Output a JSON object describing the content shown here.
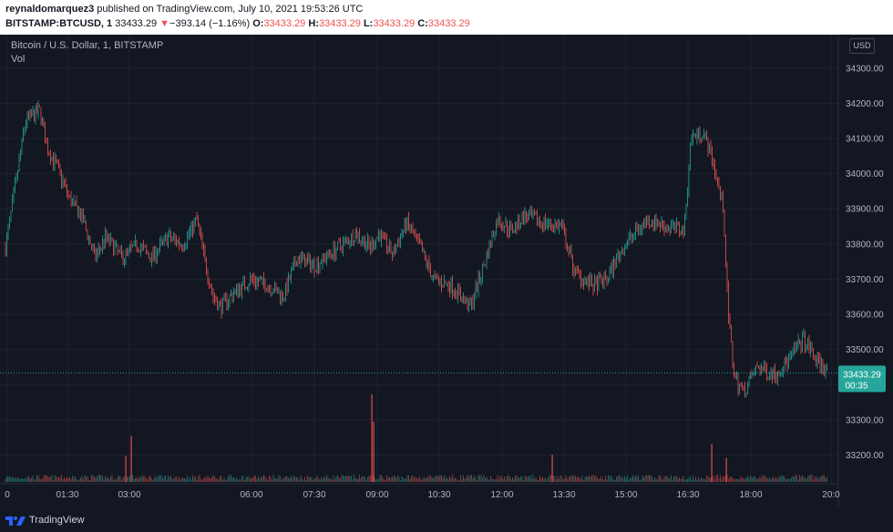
{
  "header": {
    "author": "reynaldomarquez3",
    "published_text": "published on TradingView.com, July 10, 2021 19:53:26 UTC",
    "symbol": "BITSTAMP:BTCUSD, 1",
    "last_price": "33433.29",
    "change_arrow": "▼",
    "change": "−393.14 (−1.16%)",
    "o_label": "O:",
    "o_value": "33433.29",
    "h_label": "H:",
    "h_value": "33433.29",
    "l_label": "L:",
    "l_value": "33433.29",
    "c_label": "C:",
    "c_value": "33433.29"
  },
  "chart": {
    "title": "Bitcoin / U.S. Dollar, 1, BITSTAMP",
    "vol_label": "Vol",
    "currency_button": "USD",
    "price_tag": "33433.29",
    "countdown": "00:35"
  },
  "footer": {
    "brand": "TradingView"
  },
  "colors": {
    "up": "#26a69a",
    "down": "#ef5350",
    "background": "#131722",
    "text": "#d1d4dc",
    "price_tag_bg": "#26a69a"
  },
  "chart_data": {
    "type": "candlestick",
    "y_ticks": [
      "34300.00",
      "34200.00",
      "34100.00",
      "34000.00",
      "33900.00",
      "33800.00",
      "33700.00",
      "33600.00",
      "33500.00",
      "33400.00",
      "33300.00",
      "33200.00"
    ],
    "ylim": [
      33170,
      34310
    ],
    "x_ticks": [
      "0",
      "01:30",
      "03:00",
      "06:00",
      "07:30",
      "09:00",
      "10:30",
      "12:00",
      "13:30",
      "15:00",
      "16:30",
      "18:00",
      "20:0"
    ],
    "last_price_line": 33433.29,
    "price_path": [
      {
        "t": 0,
        "p": 33790
      },
      {
        "t": 10,
        "p": 33950
      },
      {
        "t": 22,
        "p": 34150
      },
      {
        "t": 38,
        "p": 34180
      },
      {
        "t": 45,
        "p": 34080
      },
      {
        "t": 58,
        "p": 34010
      },
      {
        "t": 70,
        "p": 33930
      },
      {
        "t": 85,
        "p": 33870
      },
      {
        "t": 98,
        "p": 33760
      },
      {
        "t": 110,
        "p": 33820
      },
      {
        "t": 128,
        "p": 33760
      },
      {
        "t": 145,
        "p": 33800
      },
      {
        "t": 160,
        "p": 33760
      },
      {
        "t": 178,
        "p": 33820
      },
      {
        "t": 195,
        "p": 33800
      },
      {
        "t": 210,
        "p": 33870
      },
      {
        "t": 218,
        "p": 33760
      },
      {
        "t": 228,
        "p": 33650
      },
      {
        "t": 236,
        "p": 33620
      },
      {
        "t": 250,
        "p": 33660
      },
      {
        "t": 270,
        "p": 33700
      },
      {
        "t": 290,
        "p": 33680
      },
      {
        "t": 305,
        "p": 33650
      },
      {
        "t": 320,
        "p": 33760
      },
      {
        "t": 340,
        "p": 33740
      },
      {
        "t": 360,
        "p": 33780
      },
      {
        "t": 385,
        "p": 33830
      },
      {
        "t": 400,
        "p": 33790
      },
      {
        "t": 410,
        "p": 33830
      },
      {
        "t": 425,
        "p": 33770
      },
      {
        "t": 440,
        "p": 33860
      },
      {
        "t": 455,
        "p": 33790
      },
      {
        "t": 470,
        "p": 33700
      },
      {
        "t": 490,
        "p": 33680
      },
      {
        "t": 510,
        "p": 33620
      },
      {
        "t": 525,
        "p": 33740
      },
      {
        "t": 540,
        "p": 33870
      },
      {
        "t": 555,
        "p": 33840
      },
      {
        "t": 570,
        "p": 33880
      },
      {
        "t": 590,
        "p": 33860
      },
      {
        "t": 610,
        "p": 33850
      },
      {
        "t": 625,
        "p": 33720
      },
      {
        "t": 645,
        "p": 33680
      },
      {
        "t": 660,
        "p": 33700
      },
      {
        "t": 675,
        "p": 33780
      },
      {
        "t": 690,
        "p": 33830
      },
      {
        "t": 705,
        "p": 33870
      },
      {
        "t": 725,
        "p": 33850
      },
      {
        "t": 745,
        "p": 33840
      },
      {
        "t": 752,
        "p": 34100
      },
      {
        "t": 765,
        "p": 34120
      },
      {
        "t": 775,
        "p": 34050
      },
      {
        "t": 788,
        "p": 33900
      },
      {
        "t": 793,
        "p": 33600
      },
      {
        "t": 800,
        "p": 33420
      },
      {
        "t": 810,
        "p": 33380
      },
      {
        "t": 825,
        "p": 33450
      },
      {
        "t": 845,
        "p": 33430
      },
      {
        "t": 860,
        "p": 33470
      },
      {
        "t": 875,
        "p": 33530
      },
      {
        "t": 890,
        "p": 33470
      },
      {
        "t": 905,
        "p": 33433
      }
    ],
    "volume_spikes": [
      {
        "t": 144,
        "v": 0.42
      },
      {
        "t": 138,
        "v": 0.24
      },
      {
        "t": 408,
        "v": 0.8
      },
      {
        "t": 410,
        "v": 0.55
      },
      {
        "t": 606,
        "v": 0.25
      },
      {
        "t": 781,
        "v": 0.35
      },
      {
        "t": 797,
        "v": 0.22
      }
    ]
  }
}
